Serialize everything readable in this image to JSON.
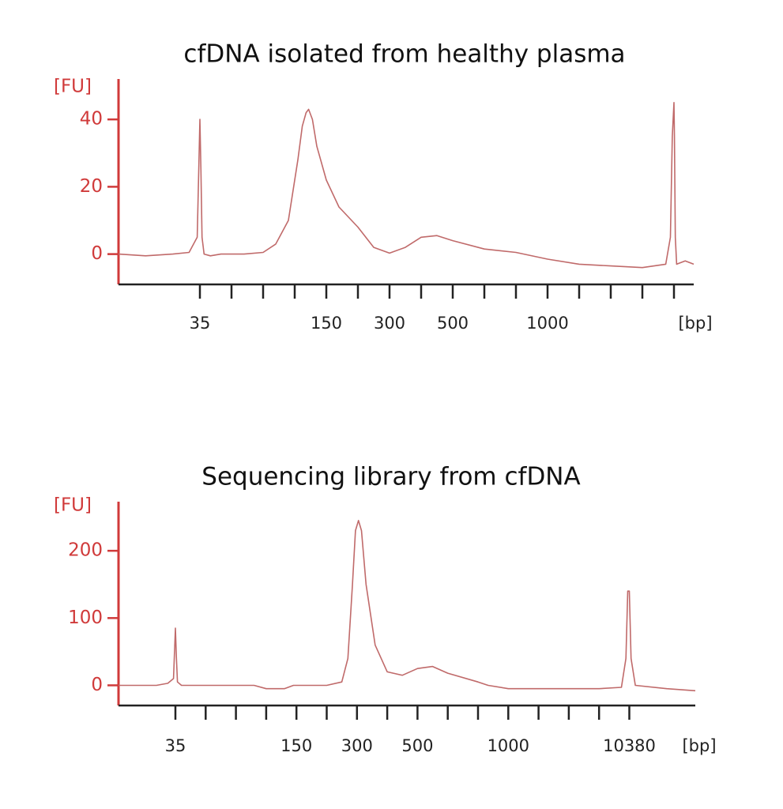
{
  "chart_data": [
    {
      "type": "line",
      "title": "cfDNA isolated from healthy plasma",
      "ylabel": "[FU]",
      "xlabel": "[bp]",
      "color": "#c06a6a",
      "axis_color": "#d03a3a",
      "xlim": [
        20,
        15000
      ],
      "ylim": [
        -9,
        52
      ],
      "yticks": [
        0,
        20,
        40
      ],
      "xticks": [
        35,
        {
          "value": 50,
          "label": null
        },
        {
          "value": 75,
          "label": null
        },
        {
          "value": 100,
          "label": null
        },
        150,
        {
          "value": 200,
          "label": null
        },
        300,
        {
          "value": 400,
          "label": null
        },
        500,
        {
          "value": 600,
          "label": null
        },
        {
          "value": 700,
          "label": null
        },
        1000,
        {
          "value": 2000,
          "label": null
        },
        {
          "value": 3000,
          "label": null
        },
        {
          "value": 7000,
          "label": null
        },
        {
          "value": 10380,
          "label": null
        }
      ],
      "x": [
        20,
        25,
        30,
        33,
        34.5,
        35,
        35.5,
        36,
        37,
        40,
        45,
        50,
        60,
        75,
        85,
        95,
        105,
        112,
        118,
        122,
        128,
        135,
        150,
        170,
        200,
        250,
        300,
        350,
        400,
        450,
        500,
        600,
        700,
        1000,
        2000,
        3000,
        7000,
        9500,
        10000,
        10200,
        10380,
        10500,
        10700,
        11000,
        13000,
        15000
      ],
      "values": [
        0,
        -0.5,
        0,
        0.5,
        5,
        40,
        25,
        5,
        0,
        -0.5,
        0,
        0,
        0,
        0.5,
        3,
        10,
        28,
        38,
        42,
        43,
        40,
        32,
        22,
        14,
        8,
        2,
        0.3,
        2,
        5,
        5.5,
        4,
        1.5,
        0.5,
        -1.5,
        -3,
        -3.5,
        -4,
        -3,
        5,
        35,
        45,
        35,
        5,
        -3,
        -2,
        -3
      ]
    },
    {
      "type": "line",
      "title": "Sequencing library from cfDNA",
      "ylabel": "[FU]",
      "xlabel": "[bp]",
      "color": "#c06a6a",
      "axis_color": "#d03a3a",
      "xlim": [
        20,
        15000
      ],
      "ylim": [
        -30,
        273
      ],
      "yticks": [
        0,
        100,
        200
      ],
      "xticks": [
        35,
        {
          "value": 50,
          "label": null
        },
        {
          "value": 75,
          "label": null
        },
        {
          "value": 100,
          "label": null
        },
        150,
        {
          "value": 200,
          "label": null
        },
        300,
        {
          "value": 400,
          "label": null
        },
        500,
        {
          "value": 600,
          "label": null
        },
        {
          "value": 700,
          "label": null
        },
        1000,
        {
          "value": 2000,
          "label": null
        },
        {
          "value": 3000,
          "label": null
        },
        {
          "value": 7000,
          "label": null
        },
        10380
      ],
      "x": [
        20,
        30,
        33,
        34.5,
        35,
        35.5,
        36,
        38,
        50,
        75,
        90,
        100,
        130,
        145,
        200,
        250,
        270,
        285,
        295,
        305,
        315,
        330,
        360,
        400,
        450,
        500,
        550,
        600,
        700,
        800,
        1000,
        2000,
        7000,
        9500,
        10000,
        10200,
        10380,
        10500,
        10800,
        13000,
        15000
      ],
      "values": [
        0,
        0,
        3,
        10,
        85,
        40,
        5,
        0,
        0,
        0,
        0,
        -5,
        -5,
        0,
        0,
        5,
        40,
        150,
        230,
        245,
        230,
        150,
        60,
        20,
        15,
        25,
        28,
        18,
        5,
        0,
        -5,
        -5,
        -5,
        -3,
        40,
        140,
        140,
        40,
        0,
        -5,
        -8
      ]
    }
  ]
}
